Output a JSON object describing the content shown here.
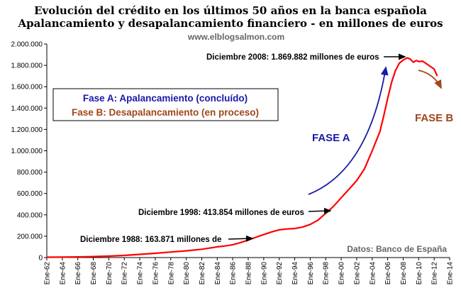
{
  "chart_data": {
    "type": "line",
    "title": "Evolución del crédito en los últimos 50 años en la banca española",
    "subtitle": "Apalancamiento y desapalancamiento financiero - en millones de euros",
    "source_url": "www.elblogsalmon.com",
    "source_note": "Datos: Banco de España",
    "ylim": [
      0,
      2000000
    ],
    "y_ticks": [
      "0",
      "200.000",
      "400.000",
      "600.000",
      "800.000",
      "1.000.000",
      "1.200.000",
      "1.400.000",
      "1.600.000",
      "1.800.000",
      "2.000.000"
    ],
    "y_tick_values": [
      0,
      200000,
      400000,
      600000,
      800000,
      1000000,
      1200000,
      1400000,
      1600000,
      1800000,
      2000000
    ],
    "x_ticks": [
      "Ene-62",
      "Ene-64",
      "Ene-66",
      "Ene-68",
      "Ene-70",
      "Ene-72",
      "Ene-74",
      "Ene-76",
      "Ene-78",
      "Ene-80",
      "Ene-82",
      "Ene-84",
      "Ene-86",
      "Ene-88",
      "Ene-90",
      "Ene-92",
      "Ene-94",
      "Ene-96",
      "Ene-98",
      "Ene-00",
      "Ene-02",
      "Ene-04",
      "Ene-06",
      "Ene-08",
      "Ene-10",
      "Ene-12",
      "Ene-14"
    ],
    "x_tick_years": [
      1962,
      1964,
      1966,
      1968,
      1970,
      1972,
      1974,
      1976,
      1978,
      1980,
      1982,
      1984,
      1986,
      1988,
      1990,
      1992,
      1994,
      1996,
      1998,
      2000,
      2002,
      2004,
      2006,
      2008,
      2010,
      2012,
      2014
    ],
    "xlim": [
      1962,
      2014
    ],
    "series": [
      {
        "name": "",
        "color": "#ff0000",
        "x": [
          1962,
          1964,
          1966,
          1968,
          1970,
          1972,
          1974,
          1976,
          1978,
          1980,
          1982,
          1984,
          1985,
          1986,
          1987,
          1988,
          1989,
          1990,
          1991,
          1992,
          1993,
          1994,
          1995,
          1996,
          1997,
          1998,
          1999,
          2000,
          2001,
          2002,
          2003,
          2004,
          2005,
          2005.5,
          2006,
          2006.5,
          2007,
          2007.5,
          2008,
          2008.5,
          2008.9,
          2009.3,
          2009.7,
          2010,
          2010.5,
          2011,
          2011.5,
          2012,
          2012.4
        ],
        "values": [
          3000,
          4000,
          6000,
          9000,
          13000,
          20000,
          30000,
          40000,
          52000,
          63000,
          78000,
          100000,
          108000,
          120000,
          140000,
          163871,
          190000,
          215000,
          240000,
          260000,
          268000,
          272000,
          285000,
          310000,
          350000,
          413854,
          480000,
          560000,
          640000,
          720000,
          830000,
          1000000,
          1180000,
          1330000,
          1490000,
          1640000,
          1750000,
          1820000,
          1850000,
          1869882,
          1860000,
          1830000,
          1845000,
          1835000,
          1840000,
          1815000,
          1790000,
          1765000,
          1700000
        ]
      }
    ],
    "annotations": [
      {
        "text": "Diciembre 2008: 1.869.882 millones de euros",
        "x": 2008.9,
        "y": 1869882
      },
      {
        "text": "Diciembre 1998: 413.854 millones de euros",
        "x": 1998.9,
        "y": 413854
      },
      {
        "text": "Diciembre 1988: 163.871 millones de",
        "x": 1988.9,
        "y": 163871
      }
    ],
    "legend": {
      "phase_a": "Fase A: Apalancamiento (concluído)",
      "phase_b": "Fase B: Desapalancamiento (en proceso)"
    },
    "phase_labels": {
      "a": "FASE A",
      "b": "FASE B"
    },
    "colors": {
      "line": "#ff0000",
      "phase_a": "#1a1aa6",
      "phase_b": "#a0461a",
      "grid": "#000000"
    },
    "grid": false
  }
}
